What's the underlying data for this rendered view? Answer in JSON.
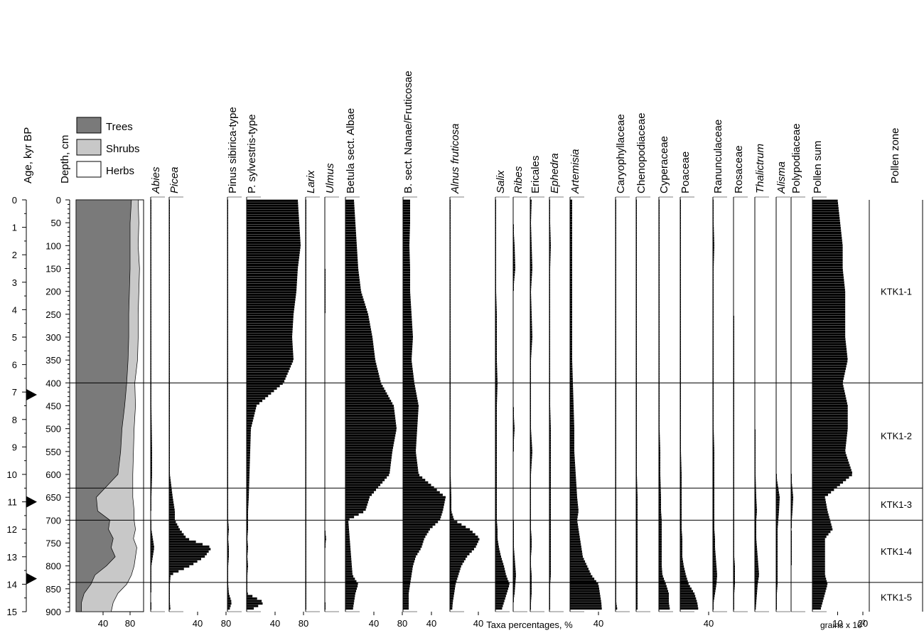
{
  "chart_data": {
    "type": "stratigraphic pollen diagram",
    "age_axis": {
      "label": "Age, kyr BP",
      "ticks": [
        "0",
        "1",
        "2",
        "3",
        "4",
        "5",
        "6",
        "7",
        "8",
        "9",
        "10",
        "11",
        "12",
        "13",
        "14",
        "15"
      ]
    },
    "depth_axis": {
      "label": "Depth, cm",
      "range": [
        0,
        900
      ],
      "ticks": [
        "0",
        "50",
        "100",
        "150",
        "200",
        "250",
        "300",
        "350",
        "400",
        "450",
        "500",
        "550",
        "600",
        "650",
        "700",
        "750",
        "800",
        "850",
        "900"
      ]
    },
    "age_markers_kyr": [
      7.1,
      11.0,
      13.8
    ],
    "groups_panel": {
      "legend": [
        {
          "name": "Trees",
          "color": "#7a7a7a"
        },
        {
          "name": "Shrubs",
          "color": "#c8c8c8"
        },
        {
          "name": "Herbs",
          "color": "#ffffff"
        }
      ],
      "x_ticks": [
        "40",
        "80"
      ],
      "depth": [
        0,
        50,
        100,
        150,
        200,
        250,
        300,
        350,
        400,
        450,
        500,
        550,
        600,
        650,
        680,
        700,
        720,
        740,
        760,
        780,
        800,
        820,
        840,
        860,
        880,
        900
      ],
      "trees_pct": [
        82,
        80,
        80,
        80,
        79,
        78,
        78,
        77,
        75,
        72,
        68,
        66,
        62,
        30,
        32,
        50,
        48,
        55,
        52,
        58,
        45,
        28,
        22,
        12,
        8,
        8
      ],
      "trees_plus_shrubs_pct": [
        92,
        93,
        92,
        94,
        93,
        92,
        92,
        91,
        87,
        88,
        86,
        85,
        84,
        84,
        86,
        86,
        88,
        85,
        90,
        88,
        86,
        82,
        75,
        62,
        55,
        52
      ]
    },
    "taxa": [
      {
        "name": "Abies",
        "series": "abies"
      },
      {
        "name": "Picea",
        "series": "picea"
      },
      {
        "name": "Pinus sibirica-type",
        "series": "pinus_sibirica"
      },
      {
        "name": "P. sylvestris-type",
        "series": "p_sylvestris"
      },
      {
        "name": "Larix",
        "series": "larix"
      },
      {
        "name": "Ulmus",
        "series": "ulmus"
      },
      {
        "name": "Betula sect. Albae",
        "series": "betula_albae"
      },
      {
        "name": "B. sect. Nanae/Fruticosae",
        "series": "betula_nanae"
      },
      {
        "name": "Alnus fruticosa",
        "series": "alnus"
      },
      {
        "name": "Salix",
        "series": "salix"
      },
      {
        "name": "Ribes",
        "series": "ribes"
      },
      {
        "name": "Ericales",
        "series": "ericales"
      },
      {
        "name": "Ephedra",
        "series": "ephedra"
      },
      {
        "name": "Artemisia",
        "series": "artemisia"
      },
      {
        "name": "Caryophyllaceae",
        "series": "caryophyllaceae"
      },
      {
        "name": "Chenopodiaceae",
        "series": "chenopodiaceae"
      },
      {
        "name": "Cyperaceae",
        "series": "cyperaceae"
      },
      {
        "name": "Poaceae",
        "series": "poaceae"
      },
      {
        "name": "Ranunculaceae",
        "series": "ranunculaceae"
      },
      {
        "name": "Rosaceae",
        "series": "rosaceae"
      },
      {
        "name": "Thalictrum",
        "series": "thalictrum"
      },
      {
        "name": "Alisma",
        "series": "alisma"
      },
      {
        "name": "Polypodiaceae",
        "series": "polypodiaceae"
      },
      {
        "name": "Pollen sum",
        "series": "pollen_sum"
      }
    ],
    "x_tick_labels": {
      "picea": [
        "40",
        "80"
      ],
      "p_sylvestris": [
        "40",
        "80"
      ],
      "betula_albae": [
        "40",
        "80"
      ],
      "betula_nanae": [
        "40"
      ],
      "alnus": [
        "40"
      ],
      "artemisia": [
        "40"
      ],
      "poaceae": [
        "40"
      ],
      "pollen_sum": [
        "10",
        "20"
      ]
    },
    "x_axis_label": "Taxa percentages, %",
    "pollen_sum_unit": "grains x 10",
    "pollen_sum_unit_exponent": "2",
    "zone_header": "Pollen zone",
    "zones": [
      {
        "name": "KTK1-1",
        "top_cm": 0,
        "bottom_cm": 400
      },
      {
        "name": "KTK1-2",
        "top_cm": 400,
        "bottom_cm": 630
      },
      {
        "name": "KTK1-3",
        "top_cm": 630,
        "bottom_cm": 700
      },
      {
        "name": "KTK1-4",
        "top_cm": 700,
        "bottom_cm": 836
      },
      {
        "name": "KTK1-5",
        "top_cm": 836,
        "bottom_cm": 900
      }
    ],
    "series_depths": [
      0,
      50,
      100,
      150,
      200,
      250,
      300,
      350,
      400,
      450,
      500,
      550,
      600,
      650,
      680,
      700,
      720,
      740,
      760,
      780,
      800,
      820,
      840,
      860,
      880,
      900
    ],
    "series": {
      "abies": [
        1,
        1,
        1,
        1,
        1,
        1,
        1,
        1,
        1,
        1,
        1.5,
        2,
        2,
        1,
        0,
        0,
        1,
        3,
        5,
        3,
        1,
        0,
        1,
        0,
        0,
        1
      ],
      "picea": [
        0.5,
        0.5,
        0.5,
        0.5,
        0.5,
        0.5,
        0.5,
        0.5,
        0.5,
        0.5,
        0.5,
        0.5,
        1,
        5,
        8,
        8,
        15,
        25,
        60,
        50,
        30,
        2,
        1,
        1,
        1,
        2
      ],
      "pinus_sibirica": [
        1,
        1,
        1,
        1,
        1,
        1,
        1,
        1,
        1,
        1,
        1,
        1,
        1,
        1,
        1,
        1,
        2,
        1,
        2,
        2,
        1,
        1,
        1,
        2,
        6,
        2
      ],
      "p_sylvestris": [
        72,
        74,
        76,
        72,
        70,
        66,
        64,
        66,
        52,
        14,
        6,
        5,
        4,
        3,
        2,
        2,
        2,
        1,
        2,
        1,
        2,
        1,
        1,
        1,
        25,
        2
      ],
      "larix": [
        0.5,
        0.5,
        0.5,
        1,
        1,
        1,
        1,
        1,
        0.5,
        0.5,
        0.5,
        0.5,
        0.5,
        1,
        1,
        1,
        1,
        1,
        1,
        1,
        1,
        1,
        0.5,
        0.5,
        0.5,
        0.5
      ],
      "ulmus": [
        0,
        0,
        0,
        0,
        1,
        0,
        0,
        0,
        0,
        0,
        0,
        0,
        0,
        0,
        0,
        0,
        0,
        2,
        0,
        0,
        0,
        0,
        0,
        0,
        0,
        1
      ],
      "betula_albae": [
        12,
        14,
        16,
        18,
        22,
        32,
        38,
        42,
        50,
        68,
        72,
        66,
        62,
        34,
        28,
        4,
        5,
        6,
        7,
        8,
        9,
        10,
        18,
        14,
        12,
        10
      ],
      "betula_nanae": [
        10,
        10,
        9,
        10,
        10,
        12,
        14,
        12,
        16,
        22,
        20,
        18,
        22,
        60,
        56,
        52,
        38,
        30,
        26,
        18,
        14,
        12,
        10,
        8,
        8,
        8
      ],
      "alnus": [
        1,
        1,
        1,
        1,
        1,
        1,
        1,
        1,
        1,
        1,
        1,
        1,
        1,
        2,
        2,
        6,
        28,
        42,
        36,
        24,
        16,
        12,
        8,
        6,
        4,
        3
      ],
      "salix": [
        1,
        1,
        1,
        1,
        1,
        2,
        2,
        2,
        3,
        2,
        2,
        2,
        2,
        2,
        2,
        2,
        3,
        3,
        5,
        8,
        12,
        15,
        20,
        16,
        12,
        8
      ],
      "ribes": [
        0,
        0,
        2,
        3,
        0,
        0,
        0,
        0,
        0,
        0,
        2,
        0,
        0,
        0,
        0,
        0,
        1,
        1,
        1,
        2,
        3,
        4,
        3,
        2,
        0,
        0
      ],
      "ericales": [
        2,
        1,
        2,
        3,
        1,
        2,
        3,
        1,
        1,
        1,
        1,
        3,
        1,
        1,
        1,
        1,
        1,
        2,
        2,
        1,
        1,
        2,
        2,
        2,
        1,
        1
      ],
      "ephedra": [
        1,
        1,
        2,
        1,
        1,
        1,
        1,
        1,
        1,
        1,
        2,
        2,
        2,
        2,
        2,
        2,
        2,
        2,
        2,
        2,
        2,
        2,
        1,
        1,
        1,
        1
      ],
      "artemisia": [
        3,
        3,
        3,
        3,
        3,
        3,
        3,
        3,
        4,
        5,
        6,
        6,
        8,
        10,
        12,
        10,
        12,
        14,
        16,
        18,
        24,
        30,
        40,
        42,
        44,
        45
      ],
      "caryophyllaceae": [
        0.5,
        0.5,
        1,
        0.5,
        0.5,
        0.5,
        1,
        1,
        0.5,
        0.5,
        0.5,
        0.5,
        0.5,
        1,
        1,
        1,
        1,
        1,
        1,
        1,
        1,
        1,
        1,
        1,
        1,
        3
      ],
      "chenopodiaceae": [
        1,
        1,
        1,
        1,
        1,
        1,
        1,
        1,
        1,
        1,
        1,
        1,
        1,
        2,
        2,
        2,
        2,
        2,
        2,
        2,
        2,
        2,
        2,
        2,
        2,
        2
      ],
      "cyperaceae": [
        1,
        1,
        1,
        1,
        1,
        1,
        1,
        1,
        1,
        1,
        1,
        2,
        2,
        3,
        3,
        4,
        4,
        4,
        4,
        4,
        4,
        5,
        10,
        14,
        14,
        16
      ],
      "poaceae": [
        1,
        1,
        1,
        1,
        1,
        1,
        1,
        1,
        1,
        1,
        1,
        1,
        2,
        2,
        2,
        2,
        2,
        3,
        3,
        3,
        5,
        8,
        12,
        20,
        24,
        26
      ],
      "ranunculaceae": [
        1,
        1,
        2,
        1,
        1,
        1,
        1,
        1,
        1,
        1,
        1,
        2,
        2,
        2,
        2,
        2,
        2,
        3,
        3,
        4,
        5,
        6,
        5,
        3,
        1,
        1
      ],
      "rosaceae": [
        0,
        0,
        0,
        0,
        0,
        0,
        1,
        1,
        1,
        1,
        1,
        1,
        1,
        1,
        1,
        1,
        1,
        1,
        1,
        1,
        2,
        2,
        2,
        1,
        1,
        1
      ],
      "thalictrum": [
        0,
        0,
        0,
        0,
        0,
        0,
        0,
        0,
        0,
        0,
        0,
        1,
        1,
        2,
        3,
        2,
        2,
        2,
        3,
        4,
        5,
        6,
        4,
        3,
        2,
        1
      ],
      "alisma": [
        0,
        0,
        0,
        0,
        0,
        0,
        0,
        0,
        0,
        0,
        0,
        0,
        0,
        5,
        4,
        3,
        2,
        2,
        2,
        2,
        2,
        2,
        2,
        1,
        1,
        1
      ],
      "polypodiaceae": [
        0,
        0,
        0,
        0,
        0,
        0,
        0,
        0,
        0,
        0,
        0,
        0,
        0,
        3,
        2,
        1,
        0,
        1,
        0,
        1,
        0,
        0,
        0,
        0,
        0,
        0
      ],
      "pollen_sum": [
        10,
        11,
        12,
        12,
        13,
        13,
        13,
        14,
        12,
        14,
        14,
        13,
        16,
        5,
        6,
        7,
        8,
        5,
        5,
        5,
        5,
        5,
        6,
        5,
        4,
        3
      ]
    }
  }
}
